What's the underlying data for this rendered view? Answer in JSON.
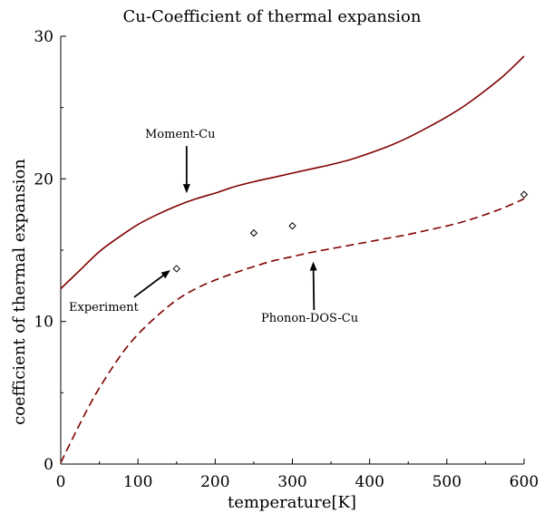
{
  "chart_data": {
    "type": "line",
    "title": "Cu-Coefficient of thermal expansion",
    "xlabel": "temperature[K]",
    "ylabel": "coefficient of thermal expansion",
    "xlim": [
      0,
      600
    ],
    "ylim": [
      0,
      30
    ],
    "x_ticks": [
      "0",
      "100",
      "200",
      "300",
      "400",
      "500",
      "600"
    ],
    "y_ticks": [
      "0",
      "10",
      "20",
      "30"
    ],
    "grid": false,
    "colors": {
      "curve": "#800000",
      "axis": "#000000",
      "marker": "#000000"
    },
    "series": [
      {
        "name": "Moment-Cu",
        "style": "solid",
        "points": [
          [
            0,
            12.3
          ],
          [
            25,
            13.6
          ],
          [
            50,
            14.9
          ],
          [
            75,
            15.9
          ],
          [
            100,
            16.8
          ],
          [
            125,
            17.5
          ],
          [
            150,
            18.1
          ],
          [
            175,
            18.6
          ],
          [
            200,
            19.0
          ],
          [
            225,
            19.45
          ],
          [
            250,
            19.8
          ],
          [
            275,
            20.1
          ],
          [
            300,
            20.4
          ],
          [
            325,
            20.7
          ],
          [
            350,
            21.0
          ],
          [
            375,
            21.35
          ],
          [
            400,
            21.8
          ],
          [
            425,
            22.3
          ],
          [
            450,
            22.9
          ],
          [
            475,
            23.6
          ],
          [
            500,
            24.35
          ],
          [
            525,
            25.2
          ],
          [
            550,
            26.2
          ],
          [
            575,
            27.3
          ],
          [
            600,
            28.6
          ]
        ]
      },
      {
        "name": "Phonon-DOS-Cu",
        "style": "dashed",
        "points": [
          [
            0,
            0.1
          ],
          [
            20,
            2.3
          ],
          [
            40,
            4.4
          ],
          [
            60,
            6.2
          ],
          [
            80,
            7.8
          ],
          [
            100,
            9.1
          ],
          [
            125,
            10.4
          ],
          [
            150,
            11.5
          ],
          [
            175,
            12.3
          ],
          [
            200,
            12.9
          ],
          [
            225,
            13.4
          ],
          [
            250,
            13.85
          ],
          [
            275,
            14.25
          ],
          [
            300,
            14.55
          ],
          [
            325,
            14.85
          ],
          [
            350,
            15.1
          ],
          [
            375,
            15.35
          ],
          [
            400,
            15.6
          ],
          [
            425,
            15.85
          ],
          [
            450,
            16.1
          ],
          [
            475,
            16.4
          ],
          [
            500,
            16.7
          ],
          [
            525,
            17.05
          ],
          [
            550,
            17.5
          ],
          [
            575,
            18.0
          ],
          [
            600,
            18.6
          ]
        ]
      },
      {
        "name": "Experiment",
        "style": "markers",
        "points": [
          [
            150,
            13.7
          ],
          [
            250,
            16.2
          ],
          [
            300,
            16.7
          ],
          [
            600,
            18.9
          ]
        ]
      }
    ],
    "annotations": [
      {
        "text": "Moment-Cu",
        "arrow_to": [
          163,
          19.0
        ],
        "arrow_from": [
          163,
          22.3
        ]
      },
      {
        "text": "Experiment",
        "arrow_to": [
          142,
          13.6
        ],
        "arrow_from": [
          95,
          11.7
        ]
      },
      {
        "text": "Phonon-DOS-Cu",
        "arrow_to": [
          327,
          14.2
        ],
        "arrow_from": [
          328,
          10.8
        ]
      }
    ]
  }
}
